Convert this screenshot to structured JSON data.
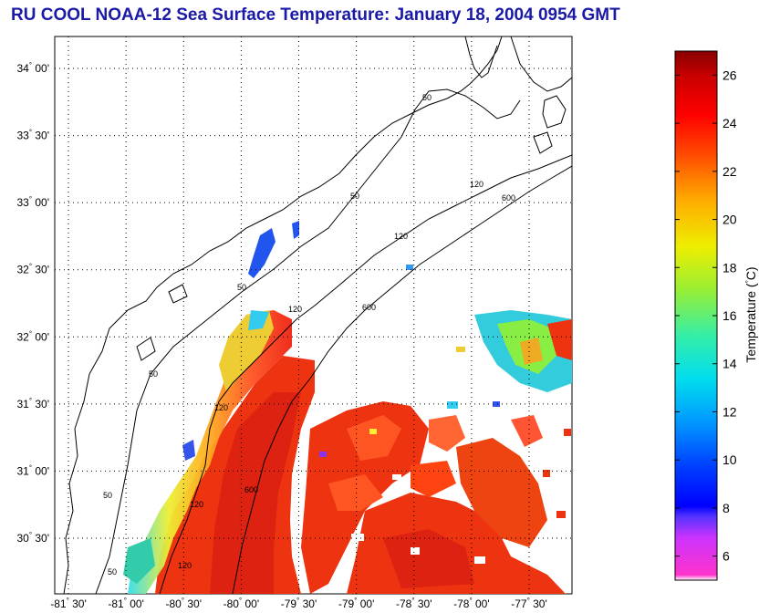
{
  "title": "RU COOL  NOAA-12  Sea Surface Temperature:  January 18, 2004 0954 GMT",
  "lat_labels": [
    {
      "deg": "34",
      "min": "00'",
      "lat": 34.0
    },
    {
      "deg": "33",
      "min": "30'",
      "lat": 33.5
    },
    {
      "deg": "33",
      "min": "00'",
      "lat": 33.0
    },
    {
      "deg": "32",
      "min": "30'",
      "lat": 32.5
    },
    {
      "deg": "32",
      "min": "00'",
      "lat": 32.0
    },
    {
      "deg": "31",
      "min": "30'",
      "lat": 31.5
    },
    {
      "deg": "31",
      "min": "00'",
      "lat": 31.0
    },
    {
      "deg": "30",
      "min": "30'",
      "lat": 30.5
    }
  ],
  "lon_labels": [
    {
      "deg": "-81",
      "min": "30'",
      "lon": -81.5
    },
    {
      "deg": "-81",
      "min": "00'",
      "lon": -81.0
    },
    {
      "deg": "-80",
      "min": "30'",
      "lon": -80.5
    },
    {
      "deg": "-80",
      "min": "00'",
      "lon": -80.0
    },
    {
      "deg": "-79",
      "min": "30'",
      "lon": -79.5
    },
    {
      "deg": "-79",
      "min": "00'",
      "lon": -79.0
    },
    {
      "deg": "-78",
      "min": "30'",
      "lon": -78.5
    },
    {
      "deg": "-78",
      "min": "00'",
      "lon": -78.0
    },
    {
      "deg": "-77",
      "min": "30'",
      "lon": -77.5
    }
  ],
  "depth_contour_labels": [
    "50",
    "50",
    "50",
    "50",
    "50",
    "50",
    "120",
    "120",
    "120",
    "120",
    "120",
    "120",
    "600",
    "600",
    "600"
  ],
  "colorbar": {
    "label": "Temperature (",
    "label_unit": "C)",
    "min": 5,
    "max": 27,
    "ticks": [
      "6",
      "8",
      "10",
      "12",
      "14",
      "16",
      "18",
      "20",
      "22",
      "24",
      "26"
    ]
  }
}
